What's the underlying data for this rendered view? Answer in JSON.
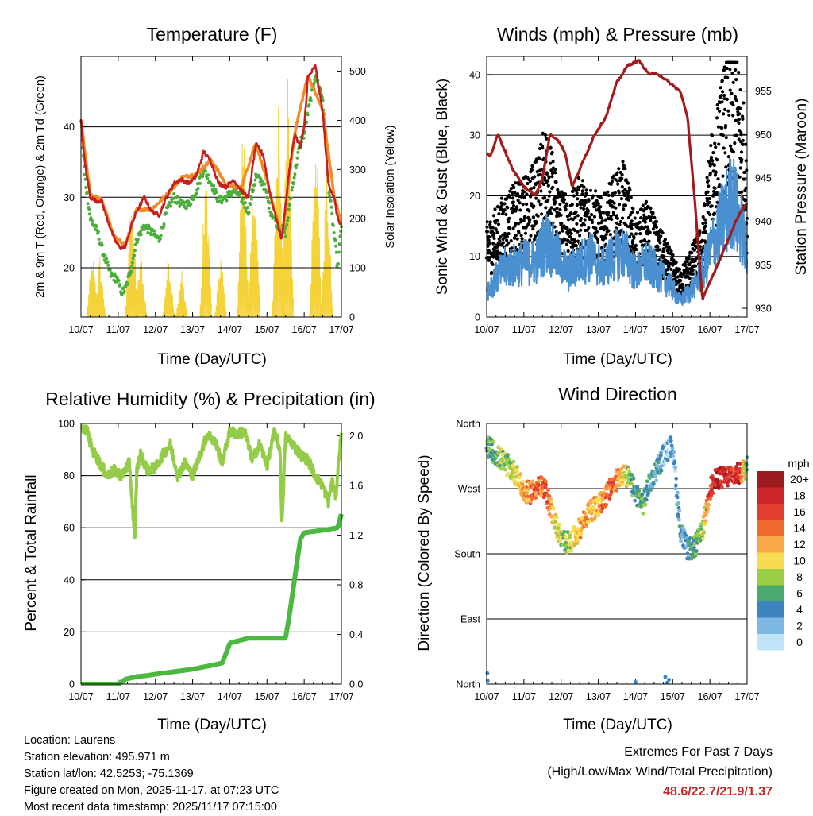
{
  "colors": {
    "t2m": "#c81e1e",
    "t9m": "#f08c28",
    "td": "#4cae3c",
    "solar": "#f5d238",
    "wind": "#4a90d0",
    "gust": "#000000",
    "pressure": "#a31a1a",
    "rh": "#94cc4a",
    "precip": "#4cb840",
    "grid": "#000000"
  },
  "x_ticks": [
    "10/07",
    "11/07",
    "12/07",
    "13/07",
    "14/07",
    "15/07",
    "16/07",
    "17/07"
  ],
  "panels": {
    "temp": {
      "title": "Temperature (F)",
      "xlabel": "Time (Day/UTC)",
      "ylabel_left": "2m & 9m T (Red, Orange) & 2m Td (Green)",
      "ylabel_right": "Solar Insolation (Yellow)",
      "yticks_left": [
        "20",
        "30",
        "40"
      ],
      "yticks_right": [
        "0",
        "100",
        "200",
        "300",
        "400",
        "500"
      ]
    },
    "wind": {
      "title": "Winds (mph) & Pressure (mb)",
      "xlabel": "Time (Day/UTC)",
      "ylabel_left": "Sonic Wind & Gust (Blue, Black)",
      "ylabel_right": "Station Pressure (Maroon)",
      "yticks_left": [
        "0",
        "10",
        "20",
        "30",
        "40"
      ],
      "yticks_right": [
        "930",
        "935",
        "940",
        "945",
        "950",
        "955"
      ]
    },
    "rh": {
      "title": "Relative Humidity (%) & Precipitation (in)",
      "xlabel": "Time (Day/UTC)",
      "ylabel_left": "Percent & Total Rainfall",
      "yticks_left": [
        "0",
        "20",
        "40",
        "60",
        "80",
        "100"
      ],
      "yticks_right": [
        "0.0",
        "0.4",
        "0.8",
        "1.2",
        "1.6",
        "2.0"
      ]
    },
    "dir": {
      "title": "Wind Direction",
      "xlabel": "Time (Day/UTC)",
      "ylabel_left": "Direction (Colored By Speed)",
      "yticks_left": [
        "North",
        "East",
        "South",
        "West",
        "North"
      ],
      "legend_title": "mph",
      "legend_labels": [
        "20+",
        "18",
        "16",
        "14",
        "12",
        "10",
        "8",
        "6",
        "4",
        "2",
        "0"
      ],
      "legend_colors": [
        "#9b1b1e",
        "#c9252a",
        "#e23e30",
        "#f26b2e",
        "#f8a847",
        "#f7dc52",
        "#9ccf48",
        "#4aa870",
        "#3d83bd",
        "#7fb7e3",
        "#bfe3f7"
      ]
    }
  },
  "chart_data": [
    {
      "type": "line",
      "title": "Temperature (F)",
      "xlabel": "Time (Day/UTC)",
      "ylabel": "2m & 9m T (Red, Orange) & 2m Td (Green)",
      "y2label": "Solar Insolation (Yellow)",
      "xlim": [
        0,
        7
      ],
      "ylim": [
        13,
        50
      ],
      "y2lim": [
        0,
        530
      ],
      "series": [
        {
          "name": "2m T",
          "color": "red",
          "x": [
            0,
            0.1,
            0.25,
            0.4,
            0.55,
            0.7,
            0.9,
            1.05,
            1.2,
            1.35,
            1.5,
            1.7,
            1.9,
            2.1,
            2.3,
            2.5,
            2.7,
            2.9,
            3.1,
            3.3,
            3.5,
            3.7,
            3.9,
            4.1,
            4.3,
            4.5,
            4.7,
            4.9,
            5.1,
            5.3,
            5.4,
            5.6,
            5.75,
            5.9,
            6.0,
            6.1,
            6.3,
            6.5,
            6.65,
            6.8,
            6.9,
            7.0
          ],
          "y": [
            41,
            35,
            30,
            29.5,
            29.5,
            27,
            24,
            22.8,
            23,
            26,
            28,
            30,
            28,
            27.5,
            30,
            32,
            32.5,
            32,
            33,
            36.5,
            35,
            32,
            31.5,
            32.5,
            31,
            30,
            37.5,
            36,
            30,
            26,
            24,
            34,
            39,
            37,
            40,
            47,
            48.6,
            42,
            32,
            30,
            27,
            26
          ]
        },
        {
          "name": "9m T",
          "color": "orange",
          "x": [
            0,
            0.25,
            0.55,
            0.9,
            1.2,
            1.5,
            1.9,
            2.3,
            2.7,
            3.1,
            3.5,
            3.9,
            4.3,
            4.7,
            5.1,
            5.4,
            5.75,
            6.1,
            6.5,
            6.8,
            7.0
          ],
          "y": [
            41,
            30.2,
            29.8,
            24.3,
            23.3,
            28.3,
            28.3,
            30.3,
            32.8,
            33.3,
            35.3,
            31.8,
            31.3,
            37.8,
            30.3,
            24.3,
            39.3,
            47.3,
            42.3,
            30.3,
            26.3
          ]
        },
        {
          "name": "2m Td",
          "color": "green",
          "x": [
            0,
            0.1,
            0.25,
            0.45,
            0.6,
            0.8,
            0.95,
            1.1,
            1.2,
            1.35,
            1.5,
            1.7,
            1.9,
            2.1,
            2.3,
            2.5,
            2.7,
            2.9,
            3.1,
            3.3,
            3.5,
            3.7,
            3.9,
            4.1,
            4.3,
            4.5,
            4.7,
            4.9,
            5.1,
            5.3,
            5.5,
            5.7,
            5.9,
            6.0,
            6.1,
            6.3,
            6.5,
            6.65,
            6.8,
            6.9,
            7.0
          ],
          "y": [
            41,
            33,
            27,
            25,
            22,
            19,
            18.5,
            16.5,
            17,
            20,
            24,
            26,
            25,
            24,
            28,
            30,
            29,
            29,
            31,
            34,
            32,
            29.5,
            30,
            31,
            30,
            28,
            33,
            32,
            28,
            26,
            25,
            32,
            38,
            39,
            42,
            47.5,
            44,
            32,
            25,
            20,
            26
          ]
        },
        {
          "name": "Solar Insolation",
          "color": "yellow",
          "axis": "right",
          "x": [
            0.3,
            0.5,
            1.35,
            1.6,
            2.35,
            2.7,
            3.35,
            3.75,
            4.35,
            4.65,
            5.3,
            5.55,
            6.3,
            6.6
          ],
          "y": [
            140,
            130,
            310,
            150,
            140,
            100,
            360,
            140,
            440,
            340,
            490,
            520,
            480,
            330
          ]
        }
      ]
    },
    {
      "type": "scatter",
      "title": "Winds (mph) & Pressure (mb)",
      "xlabel": "Time (Day/UTC)",
      "ylabel": "Sonic Wind & Gust (Blue, Black)",
      "y2label": "Station Pressure (Maroon)",
      "xlim": [
        0,
        7
      ],
      "ylim": [
        0,
        43
      ],
      "y2lim": [
        929,
        959
      ],
      "series": [
        {
          "name": "Sonic Wind",
          "color": "blue",
          "x": [
            0,
            0.5,
            1.0,
            1.3,
            1.6,
            1.9,
            2.2,
            2.5,
            2.8,
            3.1,
            3.4,
            3.7,
            4.0,
            4.3,
            4.6,
            4.9,
            5.2,
            5.5,
            5.8,
            6.0,
            6.3,
            6.6,
            6.9,
            7.0
          ],
          "y": [
            5,
            9,
            10,
            10,
            14,
            11,
            8,
            10,
            11,
            9,
            11,
            12,
            8,
            10,
            8,
            6,
            3,
            5,
            8,
            12,
            17,
            21.9,
            15,
            10
          ]
        },
        {
          "name": "Gust",
          "color": "black",
          "x": [
            0,
            0.5,
            1.0,
            1.3,
            1.6,
            1.9,
            2.2,
            2.5,
            2.8,
            3.1,
            3.4,
            3.7,
            4.0,
            4.3,
            4.6,
            4.9,
            5.2,
            5.5,
            5.8,
            6.0,
            6.3,
            6.6,
            6.9,
            7.0
          ],
          "y": [
            12,
            16,
            18,
            20,
            25,
            18,
            15,
            18,
            17,
            15,
            18,
            20,
            13,
            15,
            12,
            9,
            6,
            9,
            12,
            22,
            30,
            38,
            28,
            18
          ]
        },
        {
          "name": "Station Pressure",
          "color": "maroon",
          "axis": "right",
          "x": [
            0,
            0.1,
            0.3,
            0.5,
            0.7,
            1.0,
            1.3,
            1.5,
            1.7,
            1.9,
            2.1,
            2.3,
            2.5,
            2.7,
            2.9,
            3.2,
            3.5,
            3.8,
            4.1,
            4.35,
            4.6,
            4.9,
            5.2,
            5.4,
            5.6,
            5.8,
            6.0,
            6.2,
            6.4,
            6.6,
            6.8,
            7.0
          ],
          "y": [
            948,
            947.5,
            950,
            948,
            946,
            944,
            943,
            945,
            950,
            949.5,
            948,
            944,
            946,
            948,
            950,
            952,
            956,
            958,
            958.5,
            957,
            957,
            956,
            955,
            952,
            942,
            931,
            933,
            935,
            937,
            939,
            941,
            942
          ]
        }
      ]
    },
    {
      "type": "line",
      "title": "Relative Humidity (%) & Precipitation (in)",
      "xlabel": "Time (Day/UTC)",
      "ylabel": "Percent & Total Rainfall",
      "xlim": [
        0,
        7
      ],
      "ylim": [
        0,
        100
      ],
      "y2lim": [
        0,
        2.1
      ],
      "series": [
        {
          "name": "Relative Humidity",
          "color": "light-green",
          "x": [
            0,
            0.15,
            0.3,
            0.5,
            0.7,
            0.9,
            1.1,
            1.3,
            1.45,
            1.5,
            1.6,
            1.8,
            2.0,
            2.2,
            2.4,
            2.6,
            2.8,
            3.0,
            3.2,
            3.4,
            3.6,
            3.8,
            4.0,
            4.2,
            4.4,
            4.6,
            4.8,
            5.0,
            5.2,
            5.35,
            5.4,
            5.5,
            5.7,
            5.9,
            6.1,
            6.3,
            6.5,
            6.65,
            6.75,
            6.85,
            6.95,
            7.0
          ],
          "y": [
            99,
            98,
            90,
            85,
            80,
            82,
            80,
            85,
            55,
            82,
            88,
            82,
            83,
            88,
            92,
            80,
            85,
            80,
            88,
            96,
            93,
            85,
            97,
            96,
            97,
            86,
            92,
            84,
            97,
            90,
            61,
            95,
            92,
            88,
            86,
            80,
            76,
            70,
            78,
            72,
            90,
            95
          ]
        },
        {
          "name": "Total Precipitation",
          "color": "green",
          "axis": "right",
          "x": [
            0,
            1.0,
            1.2,
            1.5,
            1.8,
            2.0,
            2.5,
            3.0,
            3.5,
            3.8,
            4.0,
            4.5,
            5.0,
            5.5,
            5.6,
            5.8,
            5.9,
            6.0,
            6.5,
            6.9,
            7.0
          ],
          "y": [
            0,
            0,
            0.04,
            0.06,
            0.07,
            0.08,
            0.1,
            0.12,
            0.15,
            0.17,
            0.33,
            0.37,
            0.37,
            0.37,
            0.55,
            0.97,
            1.17,
            1.22,
            1.24,
            1.26,
            1.37
          ]
        }
      ]
    },
    {
      "type": "scatter",
      "title": "Wind Direction",
      "xlabel": "Time (Day/UTC)",
      "ylabel": "Direction (Colored By Speed)",
      "ylim": [
        0,
        360
      ],
      "y_categories": [
        "North",
        "East",
        "South",
        "West",
        "North"
      ],
      "colorbar": {
        "label": "mph",
        "levels": [
          "0",
          "2",
          "4",
          "6",
          "8",
          "10",
          "12",
          "14",
          "16",
          "18",
          "20+"
        ]
      },
      "series": [
        {
          "name": "Direction",
          "x": [
            0,
            0.2,
            0.4,
            0.6,
            0.8,
            1.0,
            1.2,
            1.4,
            1.6,
            1.8,
            2.0,
            2.2,
            2.4,
            2.6,
            2.8,
            3.0,
            3.2,
            3.4,
            3.6,
            3.8,
            4.0,
            4.2,
            4.4,
            4.6,
            4.8,
            5.0,
            5.2,
            5.4,
            5.6,
            5.8,
            6.0,
            6.2,
            6.4,
            6.6,
            6.8,
            7.0
          ],
          "y": [
            330,
            320,
            310,
            300,
            290,
            265,
            265,
            275,
            265,
            230,
            200,
            195,
            205,
            225,
            240,
            245,
            260,
            275,
            290,
            285,
            265,
            250,
            280,
            300,
            320,
            330,
            215,
            185,
            190,
            210,
            270,
            285,
            285,
            290,
            290,
            300
          ],
          "speed": [
            6,
            6,
            8,
            8,
            10,
            12,
            14,
            14,
            16,
            10,
            8,
            8,
            10,
            12,
            12,
            12,
            14,
            14,
            12,
            8,
            4,
            6,
            4,
            4,
            2,
            2,
            4,
            4,
            6,
            8,
            16,
            18,
            18,
            16,
            18,
            6
          ]
        }
      ]
    }
  ],
  "footer": {
    "location": "Location: Laurens",
    "elevation": "Station elevation: 495.971 m",
    "latlon": "Station lat/lon: 42.5253; -75.1369",
    "created": "Figure created on Mon, 2025-11-17, at 07:23 UTC",
    "recent": "Most recent data timestamp: 2025/11/17 07:15:00"
  },
  "extremes": {
    "title": "Extremes For Past 7 Days",
    "subtitle": "(High/Low/Max Wind/Total Precipitation)",
    "values": "48.6/22.7/21.9/1.37"
  }
}
